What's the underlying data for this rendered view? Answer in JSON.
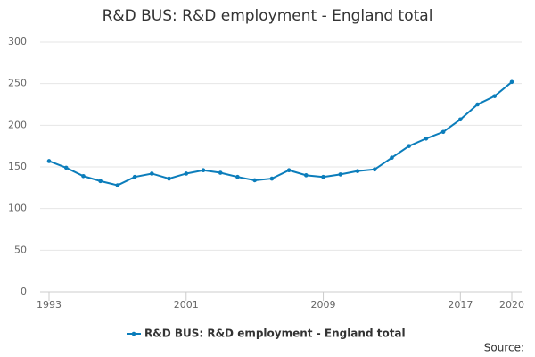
{
  "chart_data": {
    "type": "line",
    "title": "R&D BUS: R&D employment - England total",
    "x": [
      1993,
      1994,
      1995,
      1996,
      1997,
      1998,
      1999,
      2000,
      2001,
      2002,
      2003,
      2004,
      2005,
      2006,
      2007,
      2008,
      2009,
      2010,
      2011,
      2012,
      2013,
      2014,
      2015,
      2016,
      2017,
      2018,
      2019,
      2020
    ],
    "series": [
      {
        "name": "R&D BUS: R&D employment - England total",
        "color": "#0b7dbb",
        "values": [
          157,
          149,
          139,
          133,
          128,
          138,
          142,
          136,
          142,
          146,
          143,
          138,
          134,
          136,
          146,
          140,
          138,
          141,
          145,
          147,
          161,
          175,
          184,
          192,
          207,
          225,
          235,
          252
        ]
      }
    ],
    "xlim": [
      1993,
      2020
    ],
    "xticks": [
      1993,
      2001,
      2009,
      2017,
      2020
    ],
    "ylim": [
      0,
      300
    ],
    "yticks": [
      0,
      50,
      100,
      150,
      200,
      250,
      300
    ],
    "grid": true,
    "legend": "bottom",
    "source": "Source:"
  }
}
